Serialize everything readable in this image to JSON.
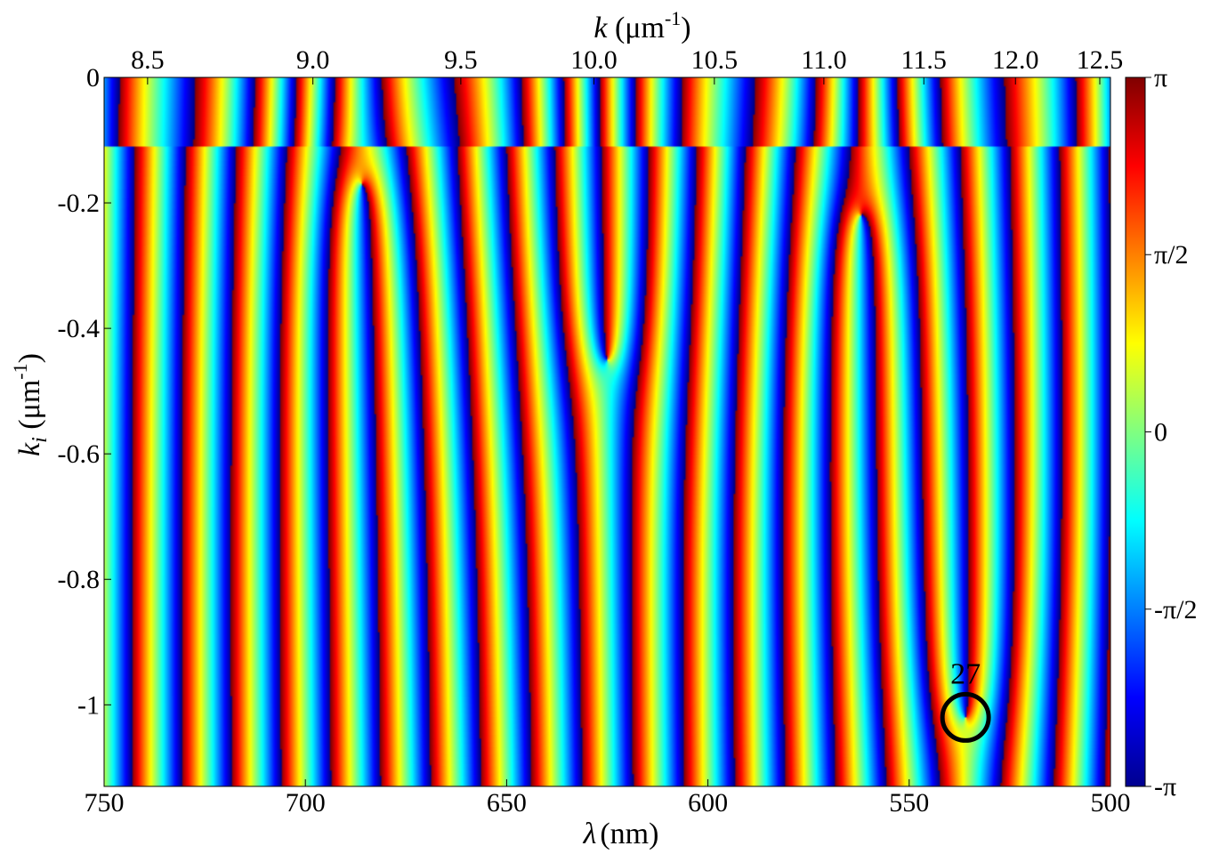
{
  "chart_data": {
    "type": "heatmap",
    "description_visible": "phase map",
    "x_bottom": {
      "label_symbol": "λ",
      "label_unit": "(nm)",
      "range": [
        750,
        500
      ],
      "ticks": [
        750,
        700,
        650,
        600,
        550,
        500
      ],
      "tick_labels": [
        "750",
        "700",
        "650",
        "600",
        "550",
        "500"
      ]
    },
    "x_top": {
      "label_symbol": "k",
      "label_unit_prefix": " (μm",
      "label_unit_sup": "-1",
      "label_unit_suffix": ")",
      "ticks": [
        8.5,
        9.0,
        9.5,
        10.0,
        10.5,
        11.0,
        11.5,
        12.0,
        12.5
      ],
      "tick_labels": [
        "8.5",
        "9.0",
        "9.5",
        "10.0",
        "10.5",
        "11.0",
        "11.5",
        "12.0",
        "12.5"
      ]
    },
    "y": {
      "label_symbol": "k",
      "label_sub": "i",
      "label_unit_prefix": " (μm",
      "label_unit_sup": "-1",
      "label_unit_suffix": ")",
      "range": [
        -1.13,
        0
      ],
      "ticks": [
        0,
        -0.2,
        -0.4,
        -0.6,
        -0.8,
        -1
      ],
      "tick_labels": [
        "0",
        "-0.2",
        "-0.4",
        "-0.6",
        "-0.8",
        "-1"
      ]
    },
    "colorbar": {
      "colormap": "jet",
      "range": [
        -3.14159,
        3.14159
      ],
      "ticks": [
        3.14159,
        1.5708,
        0,
        -1.5708,
        -3.14159
      ],
      "tick_labels": [
        "π",
        "π/2",
        "0",
        "-π/2",
        "-π"
      ]
    },
    "annotations": [
      {
        "text": "27",
        "x_nm": 536,
        "y": -1.02,
        "marker": "circle"
      }
    ],
    "phase_features": {
      "stripe_phase_slope_per_nm": 0.5,
      "singularities": [
        {
          "x_nm": 686,
          "y": -0.17
        },
        {
          "x_nm": 625,
          "y": -0.45
        },
        {
          "x_nm": 562,
          "y": -0.22
        },
        {
          "x_nm": 536,
          "y": -1.02
        }
      ],
      "top_band_ki": -0.11
    }
  }
}
